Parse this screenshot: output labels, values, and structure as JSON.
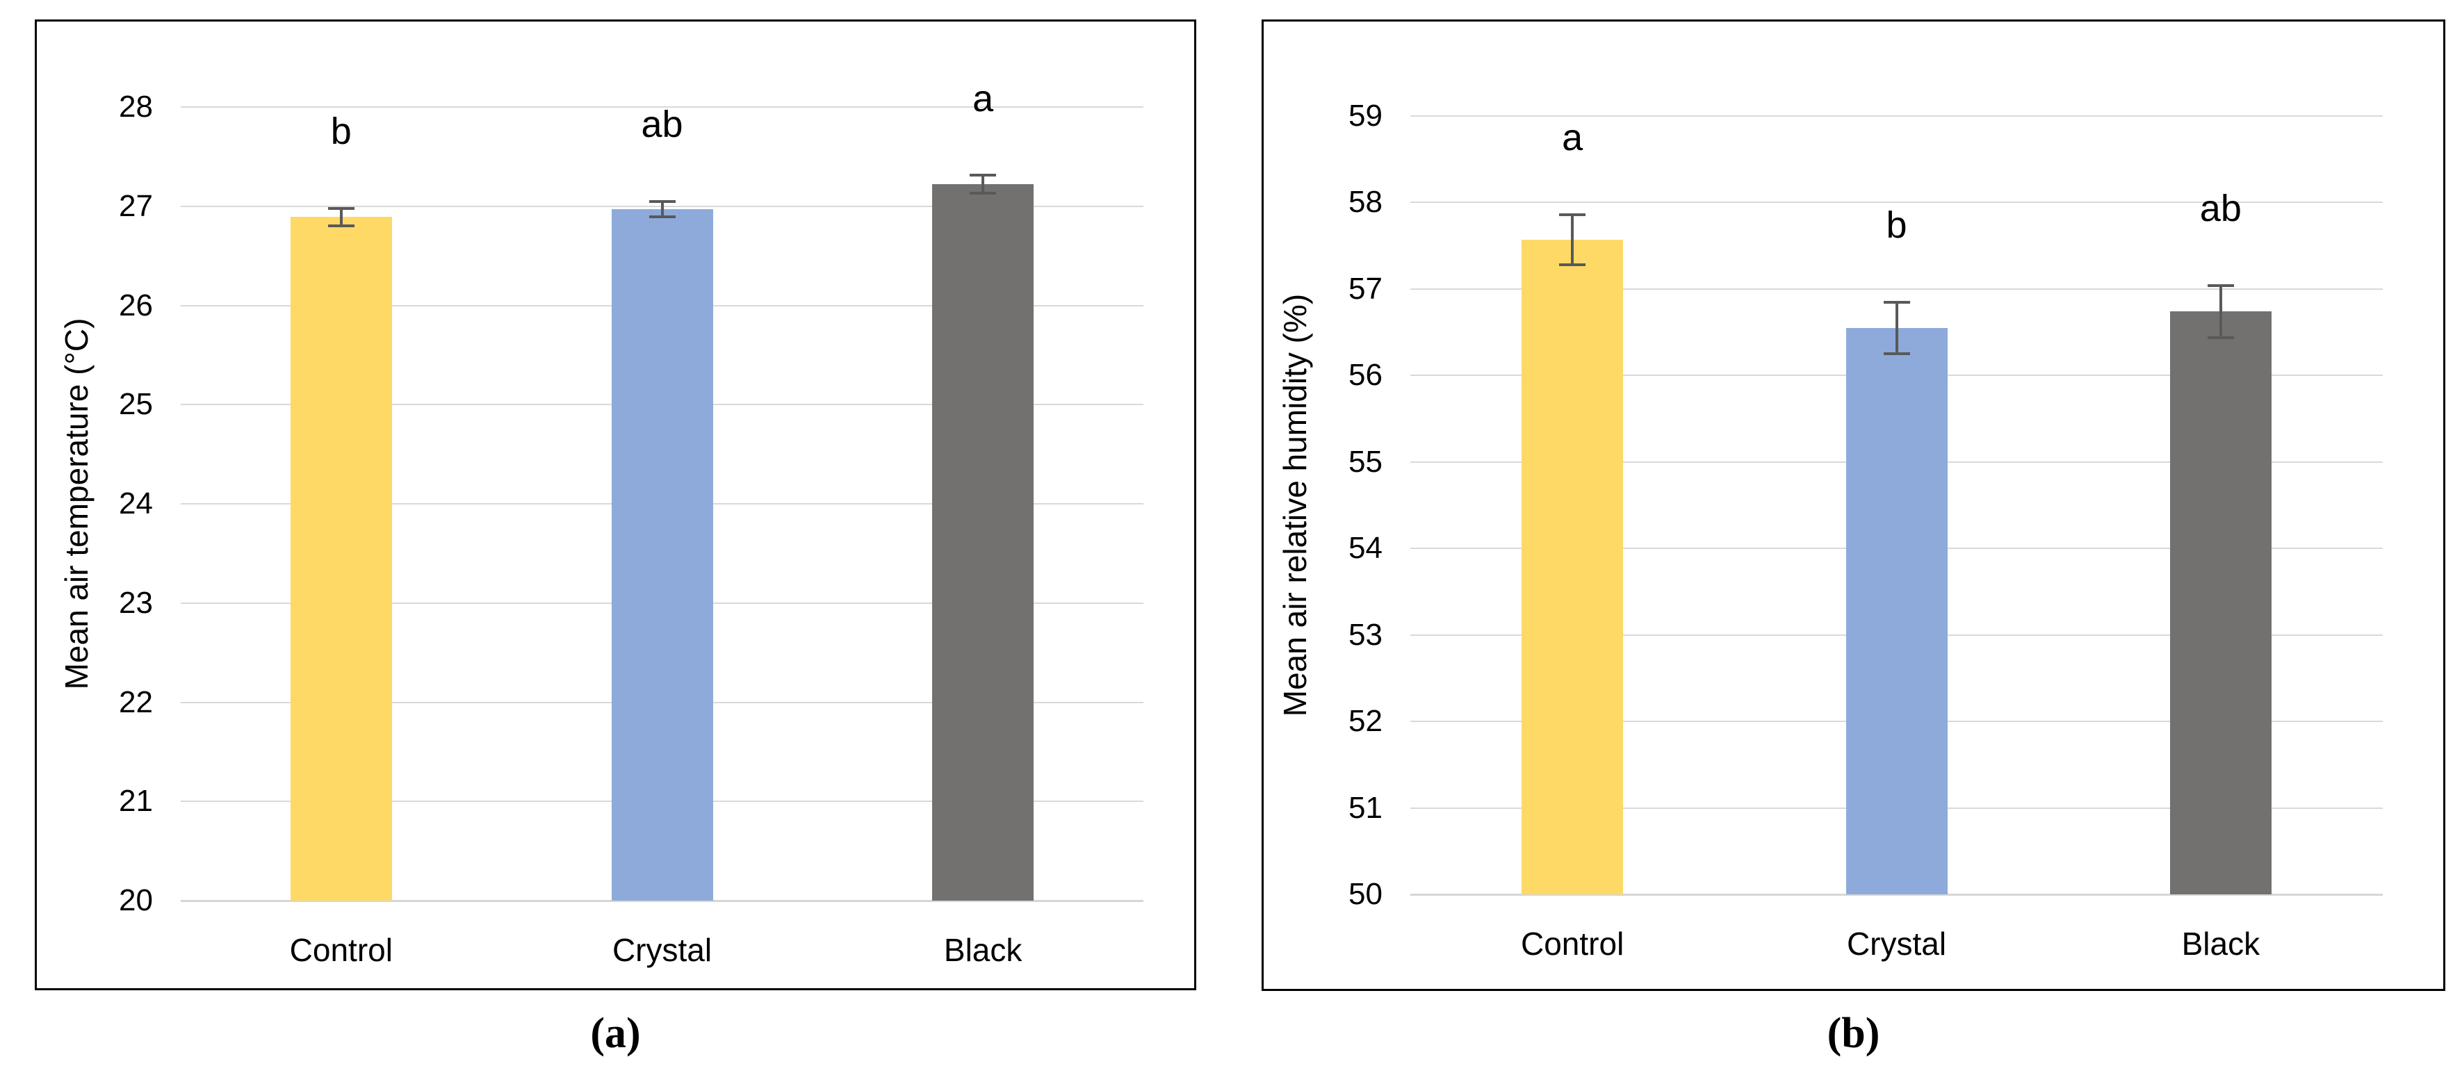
{
  "figure_background": "#FFFFFF",
  "styles": {
    "gridline_color": "#D9D9D9",
    "error_bar_color": "#595959",
    "panel_border_color": "#000000",
    "text_color": "#000000"
  },
  "chart_data": [
    {
      "type": "bar",
      "panel_label": "(a)",
      "title": "",
      "xlabel": "",
      "ylabel": "Mean air temperature (°C)",
      "ylim": [
        20,
        28
      ],
      "yticks": [
        20,
        21,
        22,
        23,
        24,
        25,
        26,
        27,
        28
      ],
      "grid": "horizontal",
      "legend": "none",
      "categories": [
        "Control",
        "Crystal",
        "Black"
      ],
      "values": [
        26.89,
        26.97,
        27.22
      ],
      "error_bars": [
        0.09,
        0.08,
        0.09
      ],
      "significance_letters": [
        "b",
        "ab",
        "a"
      ],
      "bar_colors": [
        "#FFD966",
        "#8EAADB",
        "#737070"
      ]
    },
    {
      "type": "bar",
      "panel_label": "(b)",
      "title": "",
      "xlabel": "",
      "ylabel": "Mean air relative humidity (%)",
      "ylim": [
        50,
        59
      ],
      "yticks": [
        50,
        51,
        52,
        53,
        54,
        55,
        56,
        57,
        58,
        59
      ],
      "grid": "horizontal",
      "legend": "none",
      "categories": [
        "Control",
        "Crystal",
        "Black"
      ],
      "values": [
        57.57,
        56.55,
        56.74
      ],
      "error_bars": [
        0.29,
        0.3,
        0.3
      ],
      "significance_letters": [
        "a",
        "b",
        "ab"
      ],
      "bar_colors": [
        "#FFD966",
        "#8EAADB",
        "#737070"
      ]
    }
  ]
}
